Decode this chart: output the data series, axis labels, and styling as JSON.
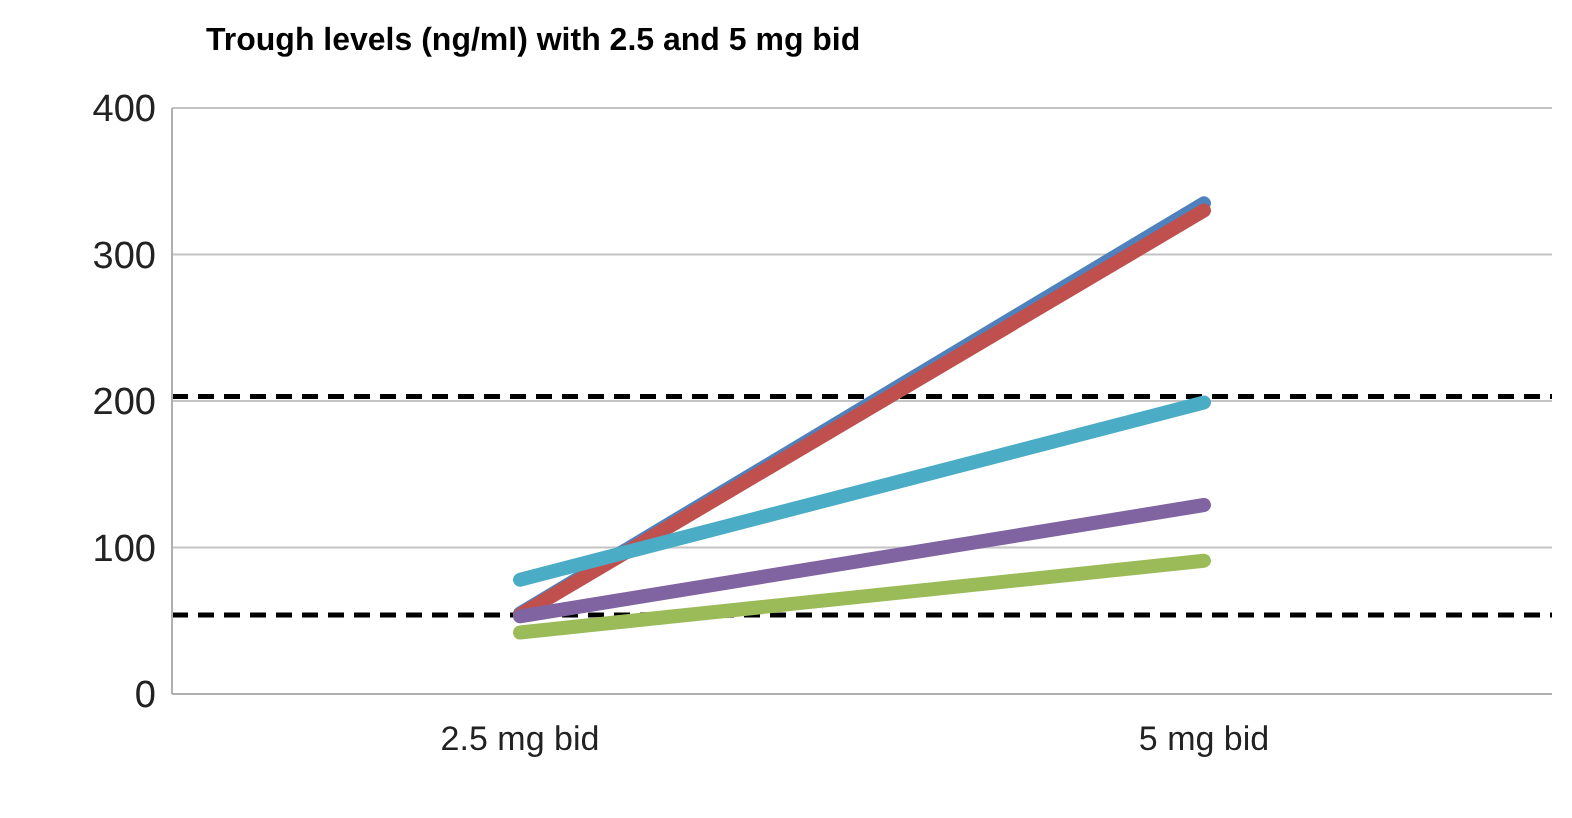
{
  "chart_data": {
    "type": "line",
    "title": "Trough levels (ng/ml) with 2.5 and 5 mg bid",
    "categories": [
      "2.5 mg bid",
      "5 mg bid"
    ],
    "series": [
      {
        "color": "#4f81bd",
        "values": [
          55,
          335
        ]
      },
      {
        "color": "#c0504d",
        "values": [
          54,
          330
        ]
      },
      {
        "color": "#4bacc6",
        "values": [
          78,
          199
        ]
      },
      {
        "color": "#8064a2",
        "values": [
          53,
          129
        ]
      },
      {
        "color": "#9bbb59",
        "values": [
          42,
          91
        ]
      }
    ],
    "ylim": [
      0,
      400
    ],
    "yticks": [
      0,
      100,
      200,
      300,
      400
    ],
    "grid": "y",
    "marker": "none",
    "line_style": "solid",
    "ref_lines": [
      {
        "axis": "y",
        "value": 203,
        "color": "#000000",
        "line_style": "dashed"
      },
      {
        "axis": "y",
        "value": 54,
        "color": "#000000",
        "line_style": "dashed"
      }
    ]
  }
}
